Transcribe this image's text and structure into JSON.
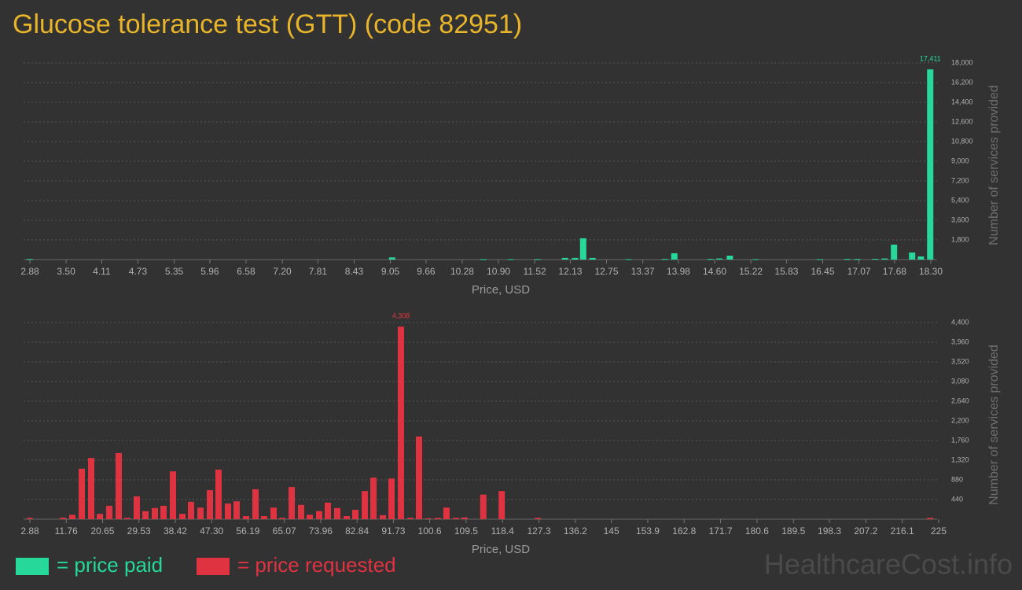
{
  "title": "Glucose tolerance test (GTT) (code 82951)",
  "watermark": "HealthcareCost.info",
  "chart_data": [
    {
      "type": "bar",
      "x_label": "Price, USD",
      "y_label": "Number of services provided",
      "grid": true,
      "xlim": [
        2.88,
        18.3
      ],
      "xticks": [
        2.88,
        {
          "value": 3.5,
          "label": "3.50"
        },
        4.11,
        4.73,
        5.35,
        5.96,
        6.58,
        {
          "value": 7.2,
          "label": "7.20"
        },
        7.81,
        8.43,
        9.05,
        9.66,
        10.28,
        {
          "value": 10.9,
          "label": "10.90"
        },
        11.52,
        12.13,
        12.75,
        13.37,
        13.98,
        {
          "value": 14.6,
          "label": "14.60"
        },
        15.22,
        15.83,
        16.45,
        17.07,
        17.68,
        {
          "value": 18.3,
          "label": "18.30"
        }
      ],
      "ylim": [
        0,
        18000
      ],
      "yticks": [
        {
          "value": 1800,
          "label": "1,800"
        },
        {
          "value": 3600,
          "label": "3,600"
        },
        {
          "value": 5400,
          "label": "5,400"
        },
        {
          "value": 7200,
          "label": "7,200"
        },
        {
          "value": 9000,
          "label": "9,000"
        },
        {
          "value": 10800,
          "label": "10,800"
        },
        {
          "value": 12600,
          "label": "12,600"
        },
        {
          "value": 14400,
          "label": "14,400"
        },
        {
          "value": 16200,
          "label": "16,200"
        },
        {
          "value": 18000,
          "label": "18,000"
        }
      ],
      "series": [
        {
          "name": "= price paid",
          "color": "#26d99a",
          "x": [
            2.88,
            9.08,
            10.64,
            11.11,
            11.57,
            12.04,
            12.21,
            12.35,
            12.51,
            13.13,
            13.75,
            13.91,
            14.53,
            14.68,
            14.86,
            15.3,
            16.4,
            16.87,
            17.04,
            17.35,
            17.51,
            17.67,
            17.98,
            18.13,
            18.29
          ],
          "values": [
            60,
            200,
            40,
            40,
            50,
            150,
            150,
            1950,
            150,
            40,
            60,
            580,
            60,
            100,
            360,
            40,
            40,
            60,
            60,
            70,
            100,
            1370,
            650,
            290,
            17411
          ],
          "value_labels": [
            null,
            null,
            null,
            null,
            null,
            null,
            null,
            null,
            null,
            null,
            null,
            null,
            null,
            null,
            null,
            null,
            null,
            null,
            null,
            null,
            null,
            null,
            null,
            null,
            "17,411"
          ]
        }
      ]
    },
    {
      "type": "bar",
      "x_label": "Price, USD",
      "y_label": "Number of services provided",
      "grid": true,
      "xlim": [
        2.88,
        225
      ],
      "xticks": [
        2.88,
        11.76,
        20.65,
        29.53,
        38.42,
        {
          "value": 47.3,
          "label": "47.30"
        },
        56.19,
        65.07,
        73.96,
        82.84,
        91.73,
        100.6,
        109.5,
        118.4,
        127.3,
        136.2,
        145,
        153.9,
        162.8,
        171.7,
        180.6,
        189.5,
        198.3,
        207.2,
        216.1,
        225
      ],
      "ylim": [
        0,
        4400
      ],
      "yticks": [
        440,
        880,
        {
          "value": 1320,
          "label": "1,320"
        },
        {
          "value": 1760,
          "label": "1,760"
        },
        {
          "value": 2200,
          "label": "2,200"
        },
        {
          "value": 2640,
          "label": "2,640"
        },
        {
          "value": 3080,
          "label": "3,080"
        },
        {
          "value": 3520,
          "label": "3,520"
        },
        {
          "value": 3960,
          "label": "3,960"
        },
        {
          "value": 4400,
          "label": "4,400"
        }
      ],
      "series": [
        {
          "name": "= price requested",
          "color": "#e03342",
          "x": [
            2.88,
            10.95,
            13.26,
            15.56,
            17.87,
            19.98,
            22.29,
            24.59,
            26.71,
            29.01,
            31.13,
            33.43,
            35.55,
            37.85,
            40.16,
            42.27,
            44.58,
            46.88,
            48.99,
            51.3,
            53.41,
            55.72,
            58.03,
            60.14,
            62.45,
            64.56,
            66.87,
            69.17,
            71.29,
            73.59,
            75.7,
            78.01,
            80.32,
            82.43,
            84.74,
            86.85,
            89.16,
            91.27,
            93.57,
            95.88,
            97.99,
            100.3,
            102.6,
            104.7,
            107.0,
            109.1,
            113.7,
            118.2,
            127.0,
            222.9
          ],
          "values": [
            30,
            35,
            100,
            1130,
            1370,
            120,
            300,
            1480,
            30,
            510,
            180,
            250,
            300,
            1070,
            120,
            390,
            260,
            650,
            1110,
            350,
            400,
            70,
            670,
            70,
            260,
            30,
            720,
            320,
            100,
            180,
            370,
            250,
            70,
            210,
            630,
            930,
            90,
            910,
            4308,
            30,
            1850,
            20,
            30,
            260,
            30,
            40,
            550,
            630,
            30,
            30
          ],
          "value_labels": [
            null,
            null,
            null,
            null,
            null,
            null,
            null,
            null,
            null,
            null,
            null,
            null,
            null,
            null,
            null,
            null,
            null,
            null,
            null,
            null,
            null,
            null,
            null,
            null,
            null,
            null,
            null,
            null,
            null,
            null,
            null,
            null,
            null,
            null,
            null,
            null,
            null,
            null,
            "4,308",
            null,
            null,
            null,
            null,
            null,
            null,
            null,
            null,
            null,
            null,
            null
          ]
        }
      ]
    }
  ]
}
